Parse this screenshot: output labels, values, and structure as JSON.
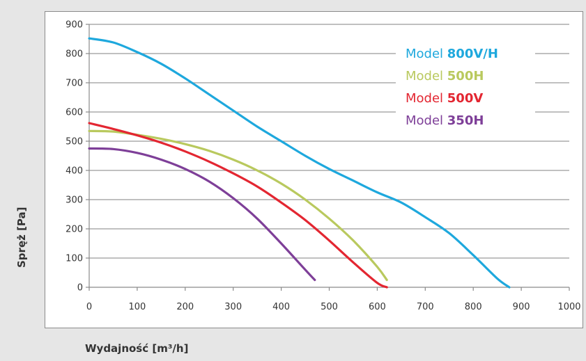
{
  "chart_data": {
    "type": "line",
    "xlabel": "Wydajność [m³/h]",
    "ylabel": "Spręż [Pa]",
    "xlim": [
      0,
      1000
    ],
    "ylim": [
      0,
      900
    ],
    "xticks": [
      0,
      100,
      200,
      300,
      400,
      500,
      600,
      700,
      800,
      900,
      1000
    ],
    "yticks": [
      0,
      100,
      200,
      300,
      400,
      500,
      600,
      700,
      800,
      900
    ],
    "grid": "horizontal",
    "legend_position": "top-right",
    "series": [
      {
        "name_prefix": "Model ",
        "name_bold": "800V/H",
        "color": "#1ea8dd",
        "x": [
          0,
          50,
          100,
          150,
          200,
          250,
          300,
          350,
          400,
          450,
          500,
          550,
          600,
          650,
          700,
          750,
          800,
          850,
          875
        ],
        "y": [
          852,
          838,
          805,
          765,
          715,
          660,
          605,
          550,
          500,
          450,
          405,
          365,
          325,
          290,
          240,
          185,
          110,
          30,
          0
        ]
      },
      {
        "name_prefix": "Model ",
        "name_bold": "500H",
        "color": "#b9c95e",
        "x": [
          0,
          50,
          100,
          150,
          200,
          250,
          300,
          350,
          400,
          450,
          500,
          550,
          600,
          620
        ],
        "y": [
          535,
          533,
          522,
          508,
          490,
          467,
          437,
          400,
          355,
          300,
          235,
          160,
          70,
          25
        ]
      },
      {
        "name_prefix": "Model ",
        "name_bold": "500V",
        "color": "#e32631",
        "x": [
          0,
          50,
          100,
          150,
          200,
          250,
          300,
          350,
          400,
          450,
          500,
          550,
          600,
          620
        ],
        "y": [
          562,
          542,
          520,
          495,
          465,
          430,
          390,
          345,
          290,
          230,
          160,
          85,
          15,
          0
        ]
      },
      {
        "name_prefix": "Model ",
        "name_bold": "350H",
        "color": "#7e3f98",
        "x": [
          0,
          50,
          100,
          150,
          200,
          250,
          300,
          350,
          400,
          450,
          470
        ],
        "y": [
          475,
          473,
          460,
          437,
          405,
          362,
          305,
          235,
          150,
          60,
          25
        ]
      }
    ]
  }
}
